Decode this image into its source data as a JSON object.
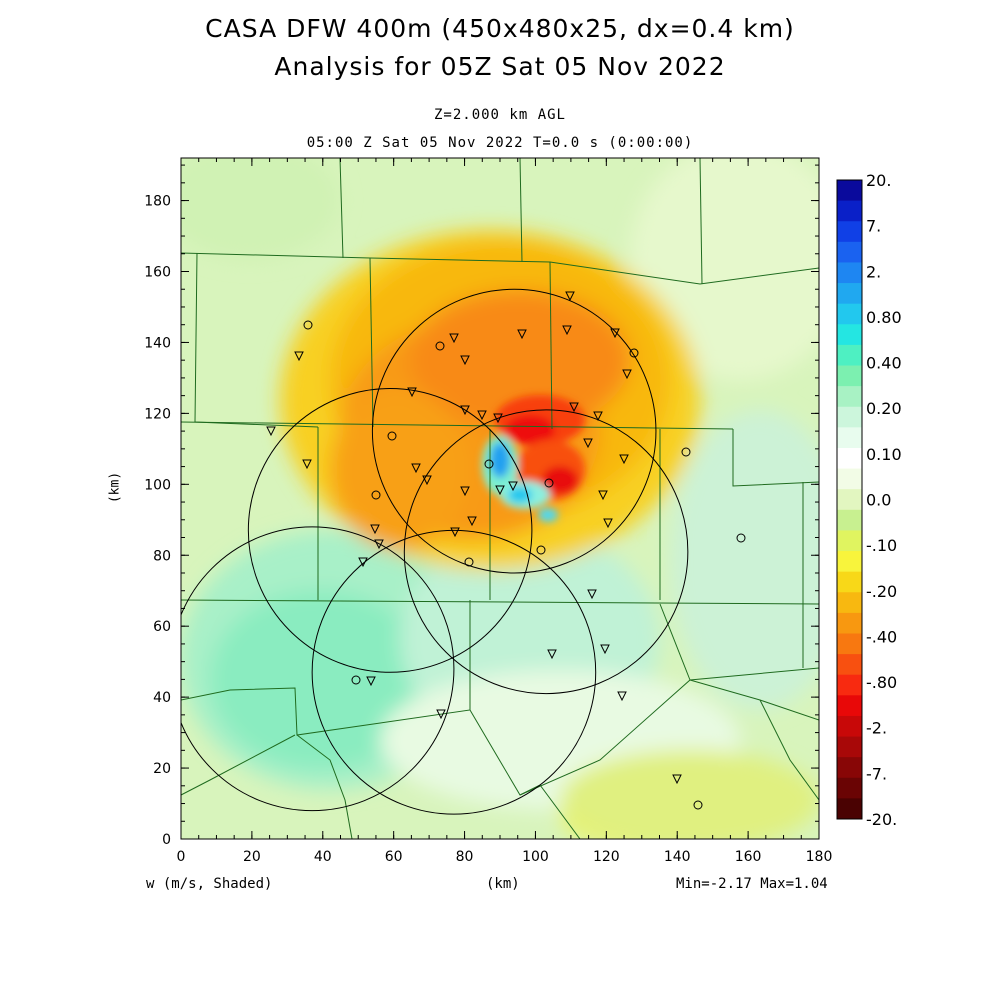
{
  "title_line1": "CASA DFW 400m (450x480x25, dx=0.4 km)",
  "title_line2": "Analysis for 05Z Sat 05 Nov 2022",
  "subtitle_level": "Z=2.000 km AGL",
  "subtitle_time": "05:00 Z Sat 05 Nov 2022    T=0.0 s (0:00:00)",
  "y_axis_label": "(km)",
  "x_axis_label": "(km)",
  "variable_label": "w (m/s, Shaded)",
  "minmax_label": "Min=-2.17 Max=1.04",
  "x_ticks": [
    "0",
    "20",
    "40",
    "60",
    "80",
    "100",
    "120",
    "140",
    "160",
    "180"
  ],
  "y_ticks": [
    "0",
    "20",
    "40",
    "60",
    "80",
    "100",
    "120",
    "140",
    "160",
    "180"
  ],
  "colorbar": {
    "labels": [
      "20.",
      "7.",
      "2.",
      "0.80",
      "0.40",
      "0.20",
      "0.10",
      "0.0",
      "-.10",
      "-.20",
      "-.40",
      "-.80",
      "-2.",
      "-7.",
      "-20."
    ],
    "colors": [
      "#0a0a9c",
      "#0a20c8",
      "#1040e6",
      "#1a62f0",
      "#1e86f2",
      "#20a8f0",
      "#22c8ee",
      "#24e6e2",
      "#4ef0c2",
      "#7cf0b0",
      "#a8f2c4",
      "#ccf6dc",
      "#e8fcee",
      "#ffffff",
      "#f2fce6",
      "#e2f6c0",
      "#c8f090",
      "#e0f460",
      "#f8f43c",
      "#f8d818",
      "#f8b810",
      "#f89810",
      "#f87810",
      "#f85010",
      "#f82a10",
      "#e80808",
      "#c80808",
      "#a80808",
      "#880606",
      "#6a0404",
      "#4a0202"
    ]
  },
  "radar_range_rings_km": [
    {
      "cx": 94,
      "cy": 115
    },
    {
      "cx": 59,
      "cy": 87
    },
    {
      "cx": 77,
      "cy": 47
    },
    {
      "cx": 103,
      "cy": 81
    },
    {
      "cx": 37,
      "cy": 48
    }
  ],
  "domain_km": {
    "x": [
      0,
      180
    ],
    "y": [
      0,
      192
    ]
  }
}
